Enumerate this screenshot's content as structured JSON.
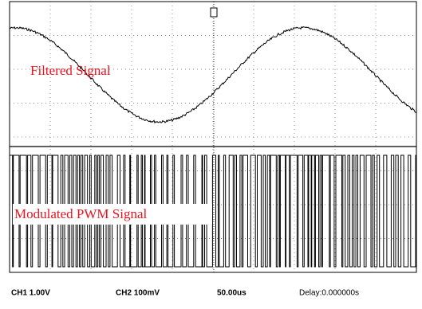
{
  "traces": {
    "top_label": "Filtered Signal",
    "bottom_label": "Modulated PWM Signal"
  },
  "status_bar": {
    "ch1": "CH1  1.00V",
    "ch2": "CH2  100mV",
    "timebase": "50.00us",
    "delay": "Delay:0.000000s"
  }
}
